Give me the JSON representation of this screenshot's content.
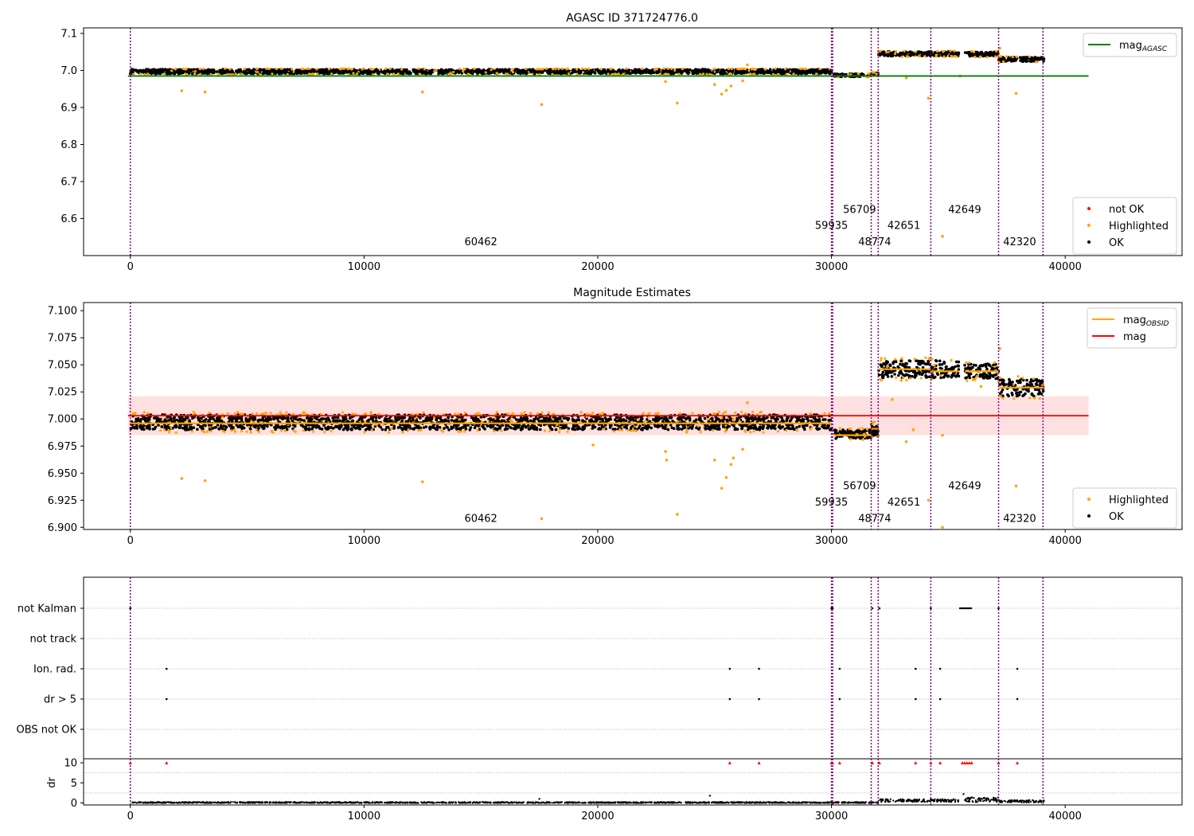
{
  "chart_data": [
    {
      "type": "scatter",
      "title": "AGASC ID 371724776.0",
      "xlim": [
        -2000,
        45000
      ],
      "ylim": [
        6.5,
        7.115
      ],
      "xticks": [
        0,
        10000,
        20000,
        30000,
        40000
      ],
      "xtick_labels": [
        "0",
        "10000",
        "20000",
        "30000",
        "40000"
      ],
      "yticks": [
        6.6,
        6.7,
        6.8,
        6.9,
        7.0,
        7.1
      ],
      "ytick_labels": [
        "6.6",
        "6.7",
        "6.8",
        "6.9",
        "7.0",
        "7.1"
      ],
      "grid": false,
      "vlines_x": [
        0,
        30000,
        30050,
        31700,
        32000,
        34250,
        37150,
        39050
      ],
      "obsid_labels": [
        {
          "text": "60462",
          "x": 15000,
          "y": 6.528
        },
        {
          "text": "59935",
          "x": 30000,
          "y": 6.572
        },
        {
          "text": "56709",
          "x": 31200,
          "y": 6.615
        },
        {
          "text": "48774",
          "x": 31850,
          "y": 6.528
        },
        {
          "text": "42651",
          "x": 33100,
          "y": 6.572
        },
        {
          "text": "42649",
          "x": 35700,
          "y": 6.615
        },
        {
          "text": "42320",
          "x": 38050,
          "y": 6.528
        }
      ],
      "bands": [
        {
          "x0": 0,
          "x1": 30000,
          "y": 6.997,
          "spread": 0.006
        },
        {
          "x0": 30100,
          "x1": 31700,
          "y": 6.987,
          "spread": 0.004
        },
        {
          "x0": 31700,
          "x1": 32000,
          "y": 6.99,
          "spread": 0.004
        },
        {
          "x0": 32000,
          "x1": 35450,
          "y": 7.045,
          "spread": 0.006
        },
        {
          "x0": 35700,
          "x1": 37150,
          "y": 7.044,
          "spread": 0.006
        },
        {
          "x0": 37150,
          "x1": 39100,
          "y": 7.03,
          "spread": 0.006
        }
      ],
      "series": [
        {
          "name": "mag_AGASC",
          "type": "line",
          "x": [
            -100,
            41000
          ],
          "y": [
            6.985,
            6.985
          ],
          "color": "#008000"
        }
      ],
      "highlighted_points": [
        {
          "x": 2200,
          "y": 6.945
        },
        {
          "x": 3200,
          "y": 6.942
        },
        {
          "x": 12500,
          "y": 6.942
        },
        {
          "x": 17600,
          "y": 6.908
        },
        {
          "x": 22900,
          "y": 6.97
        },
        {
          "x": 23400,
          "y": 6.912
        },
        {
          "x": 25000,
          "y": 6.962
        },
        {
          "x": 25300,
          "y": 6.936
        },
        {
          "x": 25500,
          "y": 6.946
        },
        {
          "x": 25700,
          "y": 6.958
        },
        {
          "x": 26200,
          "y": 6.972
        },
        {
          "x": 26400,
          "y": 7.015
        },
        {
          "x": 33200,
          "y": 6.98
        },
        {
          "x": 34150,
          "y": 6.925
        },
        {
          "x": 34750,
          "y": 6.552
        },
        {
          "x": 37200,
          "y": 7.06
        },
        {
          "x": 37900,
          "y": 6.938
        },
        {
          "x": 35500,
          "y": 6.985
        }
      ],
      "legends": [
        {
          "position": "upper-right",
          "entries": [
            {
              "label": "mag",
              "sub": "AGASC",
              "color": "#008000",
              "marker": "line"
            }
          ]
        },
        {
          "position": "lower-right",
          "entries": [
            {
              "label": "not OK",
              "color": "#ff0000",
              "marker": "dot"
            },
            {
              "label": "Highlighted",
              "color": "#ffa500",
              "marker": "dot"
            },
            {
              "label": "OK",
              "color": "#000000",
              "marker": "dot"
            }
          ]
        }
      ]
    },
    {
      "type": "scatter",
      "title": "Magnitude Estimates",
      "xlim": [
        -2000,
        45000
      ],
      "ylim": [
        6.898,
        7.1075
      ],
      "xticks": [
        0,
        10000,
        20000,
        30000,
        40000
      ],
      "xtick_labels": [
        "0",
        "10000",
        "20000",
        "30000",
        "40000"
      ],
      "yticks": [
        6.9,
        6.925,
        6.95,
        6.975,
        7.0,
        7.025,
        7.05,
        7.075,
        7.1
      ],
      "ytick_labels": [
        "6.900",
        "6.925",
        "6.950",
        "6.975",
        "7.000",
        "7.025",
        "7.050",
        "7.075",
        "7.100"
      ],
      "grid": false,
      "vlines_x": [
        0,
        30000,
        30050,
        31700,
        32000,
        34250,
        37150,
        39050
      ],
      "obsid_labels": [
        {
          "text": "60462",
          "x": 15000,
          "y": 6.905
        },
        {
          "text": "59935",
          "x": 30000,
          "y": 6.92
        },
        {
          "text": "56709",
          "x": 31200,
          "y": 6.935
        },
        {
          "text": "48774",
          "x": 31850,
          "y": 6.905
        },
        {
          "text": "42651",
          "x": 33100,
          "y": 6.92
        },
        {
          "text": "42649",
          "x": 35700,
          "y": 6.935
        },
        {
          "text": "42320",
          "x": 38050,
          "y": 6.905
        }
      ],
      "band_range": {
        "x0": -100,
        "x1": 41000,
        "y0": 6.985,
        "y1": 7.021
      },
      "bands": [
        {
          "x0": 0,
          "x1": 30000,
          "y": 6.997,
          "spread": 0.007
        },
        {
          "x0": 30100,
          "x1": 31700,
          "y": 6.986,
          "spread": 0.004
        },
        {
          "x0": 31700,
          "x1": 32000,
          "y": 6.99,
          "spread": 0.006
        },
        {
          "x0": 32000,
          "x1": 35450,
          "y": 7.046,
          "spread": 0.008
        },
        {
          "x0": 35700,
          "x1": 37150,
          "y": 7.044,
          "spread": 0.007
        },
        {
          "x0": 37150,
          "x1": 39100,
          "y": 7.029,
          "spread": 0.008
        }
      ],
      "series": [
        {
          "name": "mag",
          "type": "line",
          "x": [
            -100,
            41000
          ],
          "y": [
            7.003,
            7.003
          ],
          "color": "#ff0000"
        },
        {
          "name": "mag_OBSID",
          "type": "step",
          "segments": [
            {
              "x0": 0,
              "x1": 30000,
              "y": 6.996
            },
            {
              "x0": 30100,
              "x1": 31700,
              "y": 6.985
            },
            {
              "x0": 31700,
              "x1": 32000,
              "y": 6.991
            },
            {
              "x0": 32000,
              "x1": 34250,
              "y": 7.046
            },
            {
              "x0": 34250,
              "x1": 35450,
              "y": 7.044
            },
            {
              "x0": 35700,
              "x1": 37150,
              "y": 7.044
            },
            {
              "x0": 37150,
              "x1": 39100,
              "y": 7.029
            }
          ],
          "color": "#ffa500"
        }
      ],
      "highlighted_points": [
        {
          "x": 2200,
          "y": 6.945
        },
        {
          "x": 3200,
          "y": 6.943
        },
        {
          "x": 12500,
          "y": 6.942
        },
        {
          "x": 17600,
          "y": 6.908
        },
        {
          "x": 19800,
          "y": 6.976
        },
        {
          "x": 22900,
          "y": 6.97
        },
        {
          "x": 22950,
          "y": 6.962
        },
        {
          "x": 23400,
          "y": 6.912
        },
        {
          "x": 25000,
          "y": 6.962
        },
        {
          "x": 25300,
          "y": 6.936
        },
        {
          "x": 25500,
          "y": 6.946
        },
        {
          "x": 25700,
          "y": 6.958
        },
        {
          "x": 25800,
          "y": 6.964
        },
        {
          "x": 26200,
          "y": 6.972
        },
        {
          "x": 26400,
          "y": 7.015
        },
        {
          "x": 32600,
          "y": 7.018
        },
        {
          "x": 33200,
          "y": 6.979
        },
        {
          "x": 33500,
          "y": 6.99
        },
        {
          "x": 34150,
          "y": 6.925
        },
        {
          "x": 34750,
          "y": 6.985
        },
        {
          "x": 34750,
          "y": 6.9
        },
        {
          "x": 37200,
          "y": 7.065
        },
        {
          "x": 37900,
          "y": 6.938
        },
        {
          "x": 36400,
          "y": 7.03
        }
      ],
      "legends": [
        {
          "position": "upper-right",
          "entries": [
            {
              "label": "mag",
              "sub": "OBSID",
              "color": "#ffa500",
              "marker": "line"
            },
            {
              "label": "mag",
              "sub": "",
              "color": "#ff0000",
              "marker": "line"
            }
          ]
        },
        {
          "position": "lower-right",
          "entries": [
            {
              "label": "Highlighted",
              "color": "#ffa500",
              "marker": "dot"
            },
            {
              "label": "OK",
              "color": "#000000",
              "marker": "dot"
            }
          ]
        }
      ]
    },
    {
      "type": "scatter",
      "xlim": [
        -2000,
        45000
      ],
      "vlines_x": [
        0,
        30000,
        30050,
        31700,
        32000,
        34250,
        37150,
        39050
      ],
      "flag_rows": [
        "not Kalman",
        "not track",
        "Ion. rad.",
        "dr > 5",
        "OBS not OK"
      ],
      "flag_points": [
        {
          "row": 0,
          "x": [
            0,
            30000,
            30050,
            31750,
            32050,
            34250,
            37150
          ]
        },
        {
          "row": 0,
          "range": [
            35500,
            36000
          ]
        },
        {
          "row": 2,
          "x": [
            1550,
            25650,
            26900,
            30350,
            33600,
            34650,
            37950
          ]
        },
        {
          "row": 3,
          "x": [
            1550,
            25650,
            26900,
            30350,
            33600,
            34650,
            37950
          ]
        }
      ]
    },
    {
      "type": "scatter",
      "xlim": [
        -2000,
        45000
      ],
      "ylim": [
        -0.5,
        11
      ],
      "ylabel": "dr",
      "yticks": [
        0,
        5,
        10
      ],
      "ytick_labels": [
        "0",
        "5",
        "10"
      ],
      "xticks": [
        0,
        10000,
        20000,
        30000,
        40000
      ],
      "xtick_labels": [
        "0",
        "10000",
        "20000",
        "30000",
        "40000"
      ],
      "vlines_x": [
        0,
        30000,
        30050,
        31700,
        32000,
        34250,
        37150,
        39050
      ],
      "clip_markers_x": [
        0,
        1550,
        25650,
        26900,
        30000,
        30050,
        30350,
        31750,
        32050,
        33600,
        34250,
        34650,
        35600,
        35700,
        35800,
        35900,
        36000,
        37150,
        37950
      ],
      "dr_bands": [
        {
          "x0": 0,
          "x1": 32000,
          "y": 0.1,
          "spread": 0.15
        },
        {
          "x0": 32000,
          "x1": 35450,
          "y": 0.6,
          "spread": 0.35
        },
        {
          "x0": 35700,
          "x1": 37150,
          "y": 0.8,
          "spread": 0.6
        },
        {
          "x0": 37150,
          "x1": 39100,
          "y": 0.4,
          "spread": 0.3
        }
      ],
      "dr_points": [
        {
          "x": 24800,
          "y": 1.8
        },
        {
          "x": 35650,
          "y": 2.2
        },
        {
          "x": 17500,
          "y": 1.0
        }
      ]
    }
  ]
}
